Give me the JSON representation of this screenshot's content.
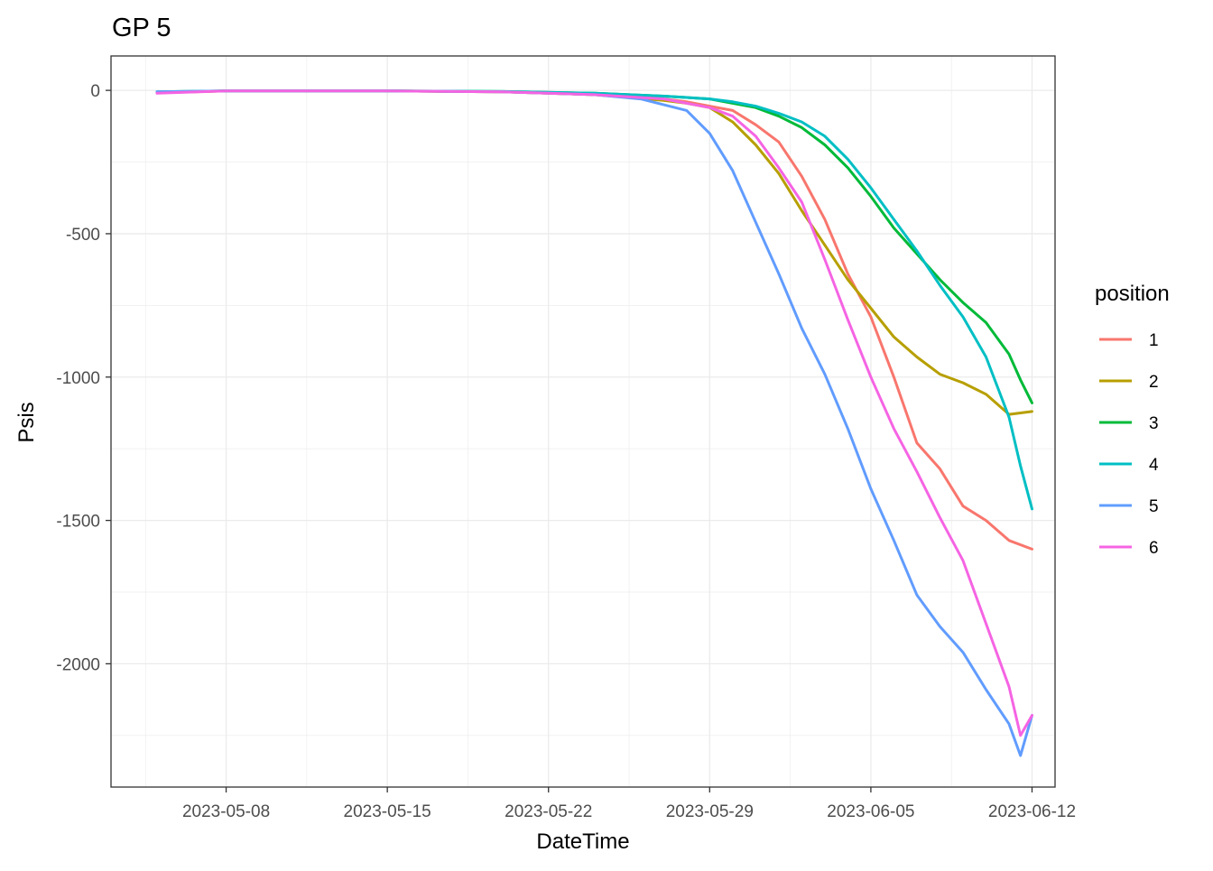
{
  "chart_data": {
    "type": "line",
    "title": "GP 5",
    "xlabel": "DateTime",
    "ylabel": "Psis",
    "x_range": [
      "2023-05-03",
      "2023-06-13"
    ],
    "ylim": [
      -2430,
      120
    ],
    "x_ticks": [
      "2023-05-08",
      "2023-05-15",
      "2023-05-22",
      "2023-05-29",
      "2023-06-05",
      "2023-06-12"
    ],
    "y_ticks": [
      0,
      -500,
      -1000,
      -1500,
      -2000
    ],
    "y_tick_labels": [
      "0",
      "-500",
      "-1000",
      "-1500",
      "-2000"
    ],
    "grid": true,
    "legend": {
      "title": "position",
      "placement": "right",
      "entries": [
        "1",
        "2",
        "3",
        "4",
        "5",
        "6"
      ]
    },
    "series": [
      {
        "name": "1",
        "color": "#F8766D",
        "points": [
          [
            "2023-05-05",
            -8
          ],
          [
            "2023-05-08",
            -2
          ],
          [
            "2023-05-15",
            -2
          ],
          [
            "2023-05-20",
            -5
          ],
          [
            "2023-05-24",
            -15
          ],
          [
            "2023-05-27",
            -30
          ],
          [
            "2023-05-28",
            -40
          ],
          [
            "2023-05-29",
            -55
          ],
          [
            "2023-05-30",
            -70
          ],
          [
            "2023-05-31",
            -120
          ],
          [
            "2023-06-01",
            -180
          ],
          [
            "2023-06-02",
            -300
          ],
          [
            "2023-06-03",
            -450
          ],
          [
            "2023-06-04",
            -640
          ],
          [
            "2023-06-05",
            -790
          ],
          [
            "2023-06-06",
            -1000
          ],
          [
            "2023-06-07",
            -1230
          ],
          [
            "2023-06-08",
            -1320
          ],
          [
            "2023-06-09",
            -1450
          ],
          [
            "2023-06-10",
            -1500
          ],
          [
            "2023-06-11",
            -1570
          ],
          [
            "2023-06-12",
            -1600
          ]
        ]
      },
      {
        "name": "2",
        "color": "#B79F00",
        "points": [
          [
            "2023-05-05",
            -8
          ],
          [
            "2023-05-08",
            -2
          ],
          [
            "2023-05-15",
            -2
          ],
          [
            "2023-05-20",
            -5
          ],
          [
            "2023-05-24",
            -15
          ],
          [
            "2023-05-27",
            -35
          ],
          [
            "2023-05-28",
            -45
          ],
          [
            "2023-05-29",
            -60
          ],
          [
            "2023-05-30",
            -110
          ],
          [
            "2023-05-31",
            -190
          ],
          [
            "2023-06-01",
            -290
          ],
          [
            "2023-06-02",
            -420
          ],
          [
            "2023-06-03",
            -540
          ],
          [
            "2023-06-04",
            -660
          ],
          [
            "2023-06-05",
            -760
          ],
          [
            "2023-06-06",
            -860
          ],
          [
            "2023-06-07",
            -930
          ],
          [
            "2023-06-08",
            -990
          ],
          [
            "2023-06-09",
            -1020
          ],
          [
            "2023-06-10",
            -1060
          ],
          [
            "2023-06-11",
            -1130
          ],
          [
            "2023-06-12",
            -1120
          ]
        ]
      },
      {
        "name": "3",
        "color": "#00BA38",
        "points": [
          [
            "2023-05-05",
            -5
          ],
          [
            "2023-05-08",
            -2
          ],
          [
            "2023-05-15",
            -2
          ],
          [
            "2023-05-20",
            -4
          ],
          [
            "2023-05-24",
            -10
          ],
          [
            "2023-05-27",
            -20
          ],
          [
            "2023-05-29",
            -30
          ],
          [
            "2023-05-30",
            -45
          ],
          [
            "2023-05-31",
            -60
          ],
          [
            "2023-06-01",
            -90
          ],
          [
            "2023-06-02",
            -130
          ],
          [
            "2023-06-03",
            -190
          ],
          [
            "2023-06-04",
            -270
          ],
          [
            "2023-06-05",
            -370
          ],
          [
            "2023-06-06",
            -480
          ],
          [
            "2023-06-07",
            -570
          ],
          [
            "2023-06-08",
            -660
          ],
          [
            "2023-06-09",
            -740
          ],
          [
            "2023-06-10",
            -810
          ],
          [
            "2023-06-11",
            -920
          ],
          [
            "2023-06-11T12:00",
            -1010
          ],
          [
            "2023-06-12",
            -1090
          ]
        ]
      },
      {
        "name": "4",
        "color": "#00BFC4",
        "points": [
          [
            "2023-05-05",
            -5
          ],
          [
            "2023-05-08",
            -2
          ],
          [
            "2023-05-15",
            -2
          ],
          [
            "2023-05-20",
            -4
          ],
          [
            "2023-05-24",
            -10
          ],
          [
            "2023-05-27",
            -20
          ],
          [
            "2023-05-29",
            -30
          ],
          [
            "2023-05-30",
            -40
          ],
          [
            "2023-05-31",
            -55
          ],
          [
            "2023-06-01",
            -80
          ],
          [
            "2023-06-02",
            -110
          ],
          [
            "2023-06-03",
            -160
          ],
          [
            "2023-06-04",
            -240
          ],
          [
            "2023-06-05",
            -340
          ],
          [
            "2023-06-06",
            -450
          ],
          [
            "2023-06-07",
            -560
          ],
          [
            "2023-06-08",
            -680
          ],
          [
            "2023-06-09",
            -790
          ],
          [
            "2023-06-10",
            -930
          ],
          [
            "2023-06-11",
            -1140
          ],
          [
            "2023-06-11T12:00",
            -1310
          ],
          [
            "2023-06-12",
            -1460
          ]
        ]
      },
      {
        "name": "5",
        "color": "#619CFF",
        "points": [
          [
            "2023-05-05",
            -5
          ],
          [
            "2023-05-08",
            -2
          ],
          [
            "2023-05-15",
            -2
          ],
          [
            "2023-05-20",
            -5
          ],
          [
            "2023-05-24",
            -15
          ],
          [
            "2023-05-26",
            -30
          ],
          [
            "2023-05-28",
            -70
          ],
          [
            "2023-05-29",
            -150
          ],
          [
            "2023-05-30",
            -280
          ],
          [
            "2023-05-31",
            -460
          ],
          [
            "2023-06-01",
            -640
          ],
          [
            "2023-06-02",
            -830
          ],
          [
            "2023-06-03",
            -990
          ],
          [
            "2023-06-04",
            -1180
          ],
          [
            "2023-06-05",
            -1390
          ],
          [
            "2023-06-06",
            -1570
          ],
          [
            "2023-06-07",
            -1760
          ],
          [
            "2023-06-08",
            -1870
          ],
          [
            "2023-06-09",
            -1960
          ],
          [
            "2023-06-10",
            -2090
          ],
          [
            "2023-06-11",
            -2210
          ],
          [
            "2023-06-11T12:00",
            -2320
          ],
          [
            "2023-06-12",
            -2180
          ]
        ]
      },
      {
        "name": "6",
        "color": "#F564E3",
        "points": [
          [
            "2023-05-05",
            -10
          ],
          [
            "2023-05-08",
            -2
          ],
          [
            "2023-05-15",
            -2
          ],
          [
            "2023-05-20",
            -5
          ],
          [
            "2023-05-24",
            -15
          ],
          [
            "2023-05-27",
            -30
          ],
          [
            "2023-05-28",
            -45
          ],
          [
            "2023-05-29",
            -60
          ],
          [
            "2023-05-30",
            -90
          ],
          [
            "2023-05-31",
            -160
          ],
          [
            "2023-06-01",
            -270
          ],
          [
            "2023-06-02",
            -390
          ],
          [
            "2023-06-03",
            -590
          ],
          [
            "2023-06-04",
            -800
          ],
          [
            "2023-06-05",
            -1000
          ],
          [
            "2023-06-06",
            -1180
          ],
          [
            "2023-06-07",
            -1330
          ],
          [
            "2023-06-08",
            -1490
          ],
          [
            "2023-06-09",
            -1640
          ],
          [
            "2023-06-10",
            -1860
          ],
          [
            "2023-06-11",
            -2080
          ],
          [
            "2023-06-11T12:00",
            -2250
          ],
          [
            "2023-06-12",
            -2180
          ]
        ]
      }
    ]
  }
}
